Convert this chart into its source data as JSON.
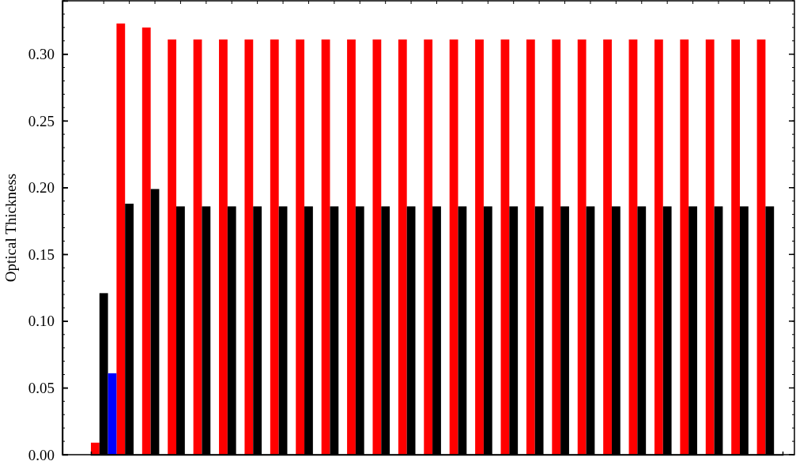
{
  "chart_data": {
    "type": "bar",
    "ylabel": "Optical Thickness",
    "categories": [
      null,
      null,
      null,
      null,
      null,
      null,
      null,
      null,
      null,
      null,
      null,
      null,
      null,
      null,
      null,
      null,
      null,
      null,
      null,
      null,
      null,
      null,
      null,
      null,
      null,
      null,
      null
    ],
    "series": [
      {
        "color": "#ff0000",
        "values": [
          0.009,
          0.323,
          0.32,
          0.311,
          0.311,
          0.311,
          0.311,
          0.311,
          0.311,
          0.311,
          0.311,
          0.311,
          0.311,
          0.311,
          0.311,
          0.311,
          0.311,
          0.311,
          0.311,
          0.311,
          0.311,
          0.311,
          0.311,
          0.311,
          0.311,
          0.311,
          0.311
        ]
      },
      {
        "color": "#000000",
        "values": [
          0.121,
          0.188,
          0.199,
          0.186,
          0.186,
          0.186,
          0.186,
          0.186,
          0.186,
          0.186,
          0.186,
          0.186,
          0.186,
          0.186,
          0.186,
          0.186,
          0.186,
          0.186,
          0.186,
          0.186,
          0.186,
          0.186,
          0.186,
          0.186,
          0.186,
          0.186,
          0.186
        ]
      },
      {
        "color": "#0000ff",
        "values": [
          0.061,
          null,
          null,
          null,
          null,
          null,
          null,
          null,
          null,
          null,
          null,
          null,
          null,
          null,
          null,
          null,
          null,
          null,
          null,
          null,
          null,
          null,
          null,
          null,
          null,
          null,
          null
        ]
      }
    ],
    "ylim": [
      0,
      0.34
    ],
    "yticks": [
      {
        "value": 0,
        "label": "0.00"
      },
      {
        "value": 0.05,
        "label": "0.05"
      },
      {
        "value": 0.1,
        "label": "0.10"
      },
      {
        "value": 0.15,
        "label": "0.15"
      },
      {
        "value": 0.2,
        "label": "0.20"
      },
      {
        "value": 0.25,
        "label": "0.25"
      },
      {
        "value": 0.3,
        "label": "0.30"
      }
    ],
    "tick_labels": "y",
    "grid": false
  }
}
